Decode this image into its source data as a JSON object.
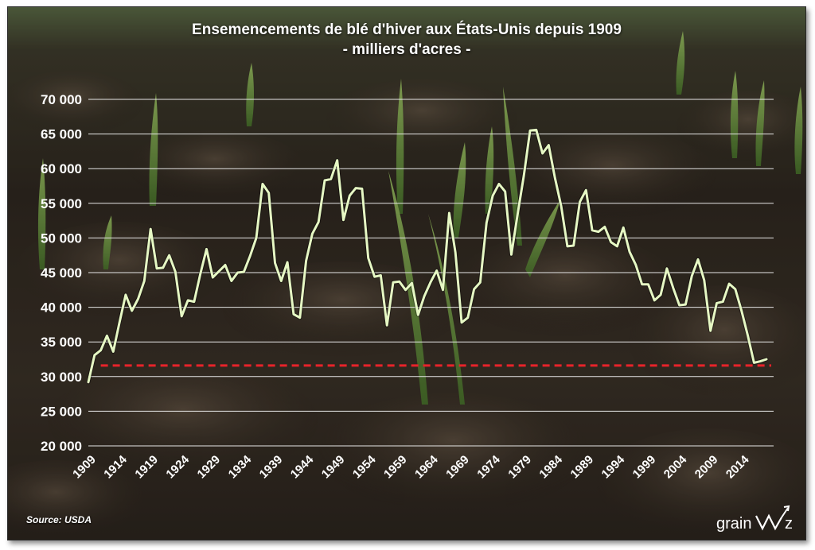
{
  "header": {
    "title": "Ensemencements de blé d'hiver aux États-Unis depuis 1909",
    "subtitle": "- milliers d'acres -"
  },
  "footer": {
    "source": "Source: USDA",
    "logo_text": "grainviz"
  },
  "colors": {
    "line": "#e6f8c4",
    "reference_line": "#e8232a",
    "gridline": "#e6e6e6",
    "text": "#ffffff"
  },
  "chart_data": {
    "type": "line",
    "title": "Ensemencements de blé d'hiver aux États-Unis depuis 1909",
    "subtitle": "- milliers d'acres -",
    "xlabel": "",
    "ylabel": "",
    "ylim": [
      20000,
      70000
    ],
    "yticks": [
      20000,
      25000,
      30000,
      35000,
      40000,
      45000,
      50000,
      55000,
      60000,
      65000,
      70000
    ],
    "ytick_labels": [
      "20 000",
      "25 000",
      "30 000",
      "35 000",
      "40 000",
      "45 000",
      "50 000",
      "55 000",
      "60 000",
      "65 000",
      "70 000"
    ],
    "xlim": [
      1909,
      2019
    ],
    "xtick_labels": [
      "1909",
      "1914",
      "1919",
      "1924",
      "1929",
      "1934",
      "1939",
      "1944",
      "1949",
      "1954",
      "1959",
      "1964",
      "1969",
      "1974",
      "1979",
      "1984",
      "1989",
      "1994",
      "1999",
      "2004",
      "2009",
      "2014"
    ],
    "grid": true,
    "legend": "none",
    "series": [
      {
        "x": [
          1909,
          1910,
          1911,
          1912,
          1913,
          1914,
          1915,
          1916,
          1917,
          1918,
          1919,
          1920,
          1921,
          1922,
          1923,
          1924,
          1925,
          1926,
          1927,
          1928,
          1929,
          1930,
          1931,
          1932,
          1933,
          1934,
          1935,
          1936,
          1937,
          1938,
          1939,
          1940,
          1941,
          1942,
          1943,
          1944,
          1945,
          1946,
          1947,
          1948,
          1949,
          1950,
          1951,
          1952,
          1953,
          1954,
          1955,
          1956,
          1957,
          1958,
          1959,
          1960,
          1961,
          1962,
          1963,
          1964,
          1965,
          1966,
          1967,
          1968,
          1969,
          1970,
          1971,
          1972,
          1973,
          1974,
          1975,
          1976,
          1977,
          1978,
          1979,
          1980,
          1981,
          1982,
          1983,
          1984,
          1985,
          1986,
          1987,
          1988,
          1989,
          1990,
          1991,
          1992,
          1993,
          1994,
          1995,
          1996,
          1997,
          1998,
          1999,
          2000,
          2001,
          2002,
          2003,
          2004,
          2005,
          2006,
          2007,
          2008,
          2009,
          2010,
          2011,
          2012,
          2013,
          2014,
          2015,
          2016,
          2017,
          2018
        ],
        "values": [
          29200,
          33100,
          33800,
          35900,
          33600,
          37800,
          41800,
          39500,
          41200,
          43800,
          51300,
          45600,
          45700,
          47500,
          45100,
          38700,
          41000,
          40800,
          44800,
          48400,
          44300,
          45200,
          46100,
          43800,
          45000,
          45100,
          47400,
          50000,
          57800,
          56500,
          46400,
          43800,
          46500,
          39000,
          38500,
          46700,
          50600,
          52300,
          58300,
          58500,
          61200,
          52600,
          56100,
          57200,
          57100,
          47100,
          44400,
          44600,
          37400,
          43600,
          43700,
          42500,
          43500,
          38900,
          41600,
          43600,
          45300,
          42500,
          53600,
          47900,
          37800,
          38500,
          42600,
          43600,
          52200,
          56100,
          57800,
          56700,
          47600,
          53400,
          59000,
          65500,
          65600,
          62200,
          63400,
          58700,
          54600,
          48800,
          48900,
          55200,
          56900,
          51100,
          50900,
          51600,
          49400,
          48800,
          51500,
          48000,
          46100,
          43300,
          43300,
          41000,
          41800,
          45600,
          42800,
          40300,
          40400,
          44500,
          46900,
          43900,
          36600,
          40600,
          40800,
          43400,
          42600,
          39500,
          35900,
          32000,
          32200,
          32500
        ]
      }
    ],
    "reference_line": {
      "value": 31600,
      "style": "dashed"
    }
  }
}
